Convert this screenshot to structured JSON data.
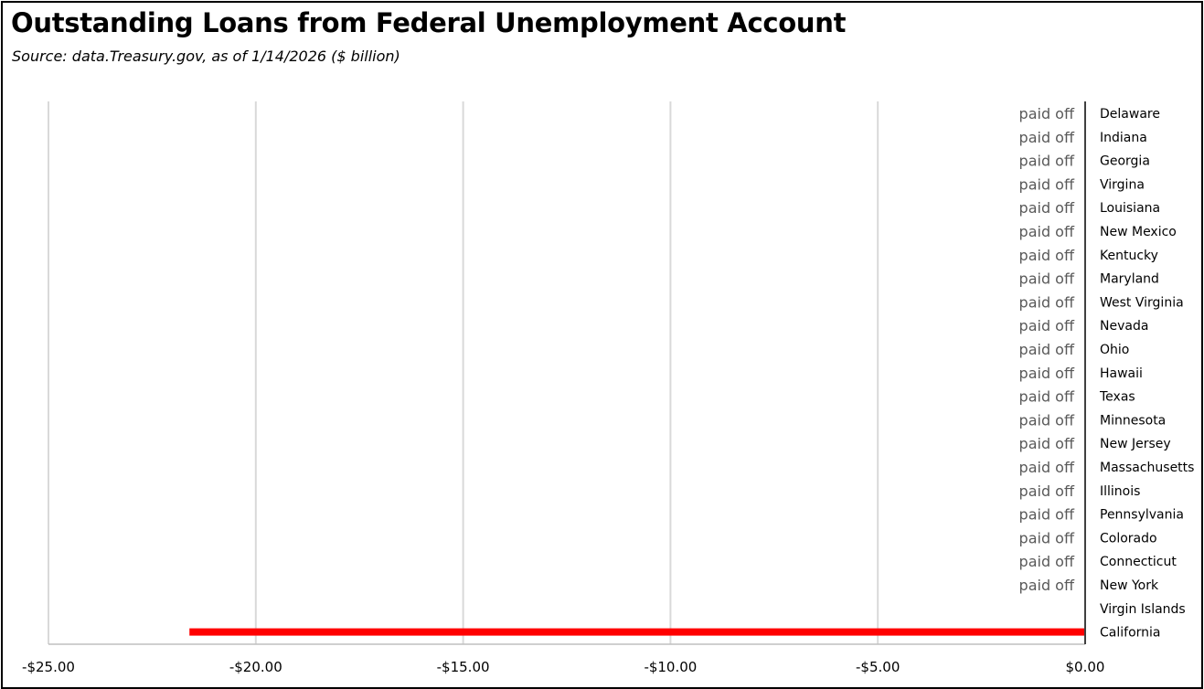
{
  "title": "Outstanding Loans from Federal Unemployment Account",
  "subtitle": "Source:  data.Treasury.gov, as of 1/14/2026  ($ billion)",
  "chart_data": {
    "type": "bar",
    "orientation": "horizontal",
    "title": "Outstanding Loans from Federal Unemployment Account",
    "subtitle": "Source:  data.Treasury.gov, as of 1/14/2026  ($ billion)",
    "categories": [
      "Delaware",
      "Indiana",
      "Georgia",
      "Virgina",
      "Louisiana",
      "New Mexico",
      "Kentucky",
      "Maryland",
      "West Virginia",
      "Nevada",
      "Ohio",
      "Hawaii",
      "Texas",
      "Minnesota",
      "New Jersey",
      "Massachusetts",
      "Illinois",
      "Pennsylvania",
      "Colorado",
      "Connecticut",
      "New York",
      "Virgin Islands",
      "California"
    ],
    "values": [
      0,
      0,
      0,
      0,
      0,
      0,
      0,
      0,
      0,
      0,
      0,
      0,
      0,
      0,
      0,
      0,
      0,
      0,
      0,
      0,
      0,
      0,
      -21.6
    ],
    "data_labels": [
      "paid off",
      "paid off",
      "paid off",
      "paid off",
      "paid off",
      "paid off",
      "paid off",
      "paid off",
      "paid off",
      "paid off",
      "paid off",
      "paid off",
      "paid off",
      "paid off",
      "paid off",
      "paid off",
      "paid off",
      "paid off",
      "paid off",
      "paid off",
      "paid off",
      "",
      ""
    ],
    "xlim": [
      -25,
      0
    ],
    "xticks": [
      -25,
      -20,
      -15,
      -10,
      -5,
      0
    ],
    "xtick_labels": [
      "-$25.00",
      "-$20.00",
      "-$15.00",
      "-$10.00",
      "-$5.00",
      "$0.00"
    ],
    "xlabel": "",
    "ylabel": "",
    "grid": "vertical",
    "legend": "none",
    "bar_color": "#ff0000",
    "grid_color": "#d9d9d9",
    "data_label_color": "#595959"
  }
}
